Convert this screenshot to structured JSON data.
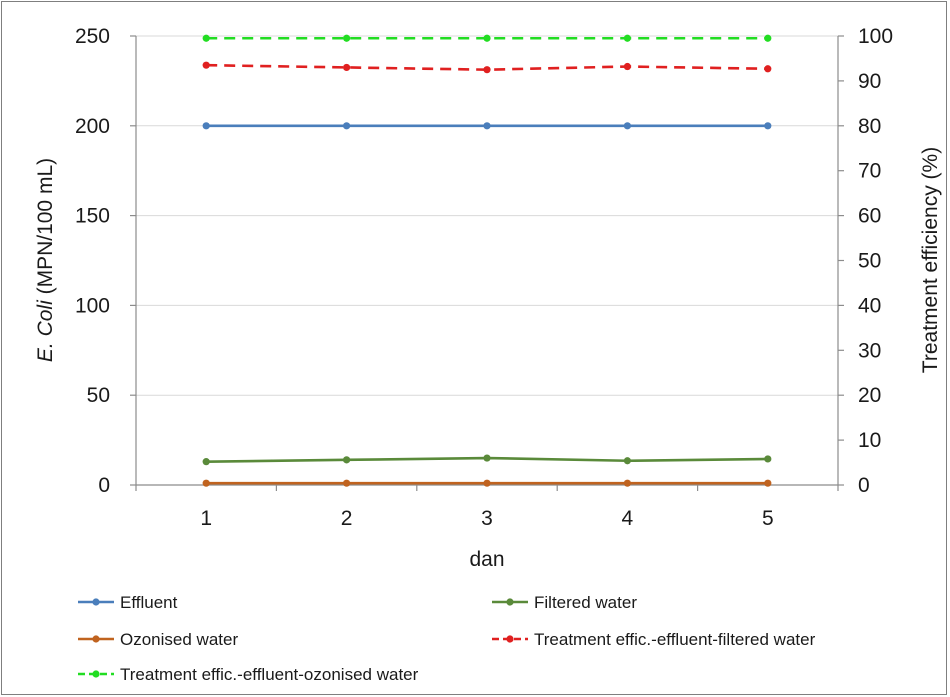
{
  "chart_data": {
    "type": "line",
    "x": [
      1,
      2,
      3,
      4,
      5
    ],
    "xlabel": "dan",
    "ylabel_italic": "E. Coli",
    "ylabel_rest": " (MPN/100 mL)",
    "y2label": "Treatment efficiency (%)",
    "ylim": [
      0,
      250
    ],
    "yticks": [
      0,
      50,
      100,
      150,
      200,
      250
    ],
    "y2lim": [
      0,
      100
    ],
    "y2ticks": [
      0,
      10,
      20,
      30,
      40,
      50,
      60,
      70,
      80,
      90,
      100
    ],
    "grid": true,
    "legend_position": "bottom",
    "series": [
      {
        "name": "Effluent",
        "axis": "left",
        "values": [
          200,
          200,
          200,
          200,
          200
        ],
        "color": "#4a7ebb",
        "dash": false
      },
      {
        "name": "Filtered water",
        "axis": "left",
        "values": [
          13,
          14,
          15,
          13.5,
          14.5
        ],
        "color": "#5a8a3a",
        "dash": false
      },
      {
        "name": "Ozonised water",
        "axis": "left",
        "values": [
          1,
          1,
          1,
          1,
          1
        ],
        "color": "#c0631f",
        "dash": false
      },
      {
        "name": "Treatment effic.-effluent-filtered water",
        "axis": "right",
        "values": [
          93.5,
          93,
          92.5,
          93.2,
          92.7
        ],
        "color": "#e02020",
        "dash": true
      },
      {
        "name": "Treatment effic.-effluent-ozonised water",
        "axis": "right",
        "values": [
          99.5,
          99.5,
          99.5,
          99.5,
          99.5
        ],
        "color": "#22dd22",
        "dash": true
      }
    ]
  }
}
